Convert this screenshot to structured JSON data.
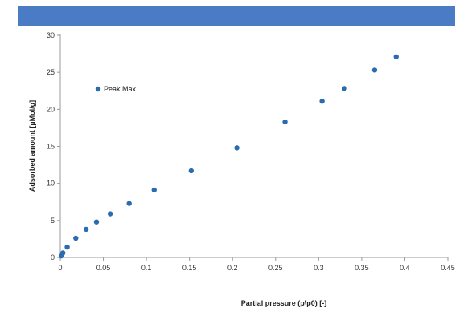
{
  "colors": {
    "header_bar": "#4a7cc6",
    "frame_line": "#4a7cc6",
    "series": "#2b6cb0",
    "axis": "#9a9a9a"
  },
  "chart_data": {
    "type": "scatter",
    "title": "",
    "xlabel": "Partial pressure (p/p0) [-]",
    "ylabel": "Adsorbed amount [µMol/g]",
    "xlim": [
      0,
      0.45
    ],
    "ylim": [
      0,
      30
    ],
    "xticks": [
      "0",
      "0.05",
      "0.1",
      "0.15",
      "0.2",
      "0.25",
      "0.3",
      "0.35",
      "0.4",
      "0.45"
    ],
    "yticks": [
      "0",
      "5",
      "10",
      "15",
      "20",
      "25",
      "30"
    ],
    "grid": false,
    "legend_position": "upper-left",
    "series": [
      {
        "name": "Peak Max",
        "x": [
          0.001,
          0.003,
          0.008,
          0.018,
          0.03,
          0.042,
          0.058,
          0.08,
          0.109,
          0.152,
          0.205,
          0.261,
          0.304,
          0.33,
          0.365,
          0.39
        ],
        "y": [
          0.2,
          0.6,
          1.4,
          2.6,
          3.8,
          4.8,
          5.9,
          7.3,
          9.1,
          11.7,
          14.8,
          18.3,
          21.1,
          22.8,
          25.3,
          27.1
        ]
      }
    ]
  }
}
